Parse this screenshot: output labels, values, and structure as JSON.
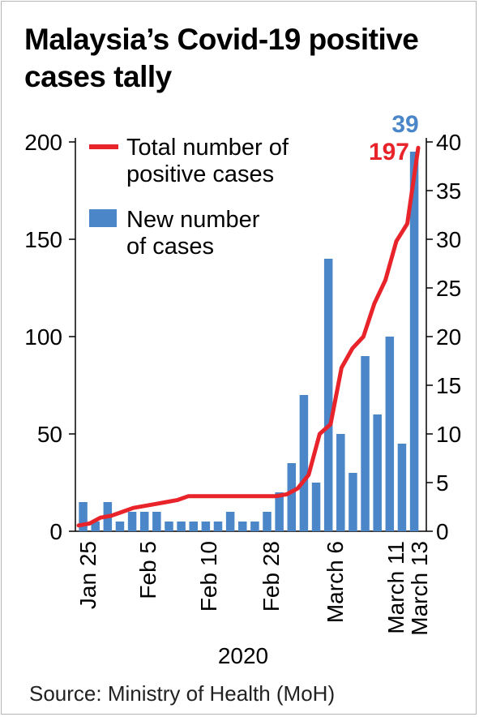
{
  "title": "Malaysia’s Covid-19 positive cases tally",
  "source": "Source: Ministry of Health (MoH)",
  "colors": {
    "line": "#e8232a",
    "bar": "#4a86c8",
    "axis": "#000000"
  },
  "chart_data": {
    "type": "bar+line",
    "x_axis_label": "2020",
    "x_tick_labels": [
      "Jan 25",
      "Feb 5",
      "Feb 10",
      "Feb 28",
      "March 6",
      "March 11",
      "March 13"
    ],
    "left_axis": {
      "range": [
        0,
        200
      ],
      "ticks": [
        "0",
        "50",
        "100",
        "150",
        "200"
      ]
    },
    "right_axis": {
      "range": [
        0,
        40
      ],
      "ticks": [
        "0",
        "5",
        "10",
        "15",
        "20",
        "25",
        "30",
        "35",
        "40"
      ]
    },
    "legend": {
      "position": "top-left",
      "line_label": [
        "Total number of",
        "positive cases"
      ],
      "bar_label": [
        "New number",
        "of cases"
      ]
    },
    "series": [
      {
        "name": "Total number of positive cases",
        "type": "line",
        "axis": "left",
        "values": [
          3,
          4,
          7,
          8,
          10,
          12,
          13,
          14,
          15,
          16,
          18,
          18,
          18,
          18,
          18,
          18,
          18,
          18,
          18,
          19,
          22,
          29,
          50,
          55,
          84,
          94,
          100,
          117,
          129,
          149,
          158,
          197
        ]
      },
      {
        "name": "New number of cases",
        "type": "bar",
        "axis": "right",
        "values": [
          3,
          1,
          3,
          1,
          2,
          2,
          2,
          1,
          1,
          1,
          1,
          1,
          2,
          1,
          1,
          2,
          4,
          7,
          14,
          5,
          28,
          10,
          6,
          18,
          12,
          20,
          9,
          39
        ]
      }
    ],
    "annotations": {
      "last_total": "197",
      "last_new": "39"
    }
  }
}
